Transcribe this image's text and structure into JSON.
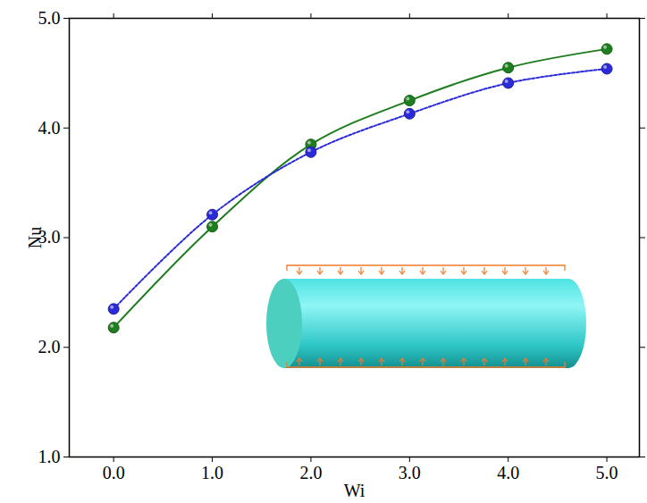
{
  "chart_data": {
    "type": "line",
    "xlabel": "Wi",
    "ylabel": "Nu",
    "x": [
      0,
      1,
      2,
      3,
      4,
      5
    ],
    "series": [
      {
        "color": "#1e7d1e",
        "marker": "circle",
        "line_style": "solid",
        "values": [
          2.18,
          3.1,
          3.85,
          4.25,
          4.55,
          4.72
        ]
      },
      {
        "color": "#2a2ad8",
        "marker": "circle",
        "line_style": "dashed",
        "values": [
          2.35,
          3.21,
          3.78,
          4.13,
          4.41,
          4.54
        ]
      }
    ],
    "xlim": [
      -0.45,
      5.33
    ],
    "ylim": [
      1,
      5
    ],
    "xticks": [
      0,
      1,
      2,
      3,
      4,
      5
    ],
    "yticks": [
      1,
      2,
      3,
      4,
      5
    ],
    "grid": false
  }
}
